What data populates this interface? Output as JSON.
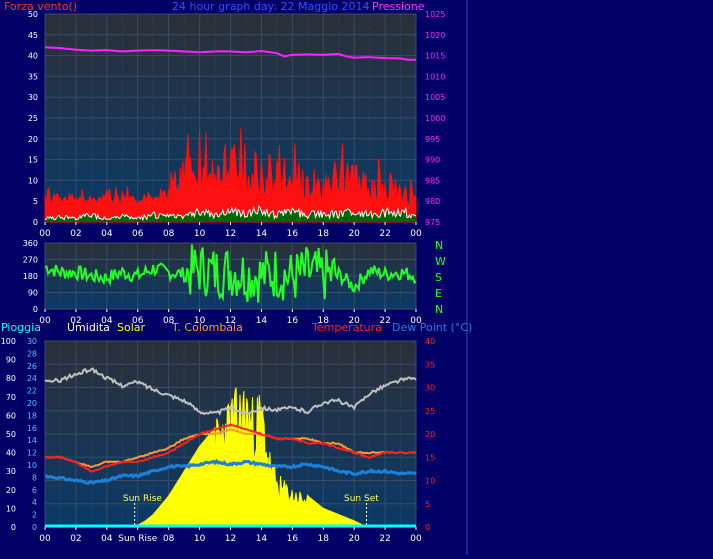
{
  "colors": {
    "page_bg": "#000066",
    "plot_bg_top": "#2b3038",
    "plot_bg_bottom": "#0a3a68",
    "grid": "#3a4c66",
    "axis_text": "#ffffff",
    "wind_gust": "#ff1010",
    "wind_avg": "#ffffff",
    "wind_fill": "#006600",
    "pressure": "#ff22ff",
    "direction": "#22ff22",
    "rain": "#00ffff",
    "humidity": "#c0c0c0",
    "solar": "#ffff00",
    "t_colombaia": "#ff9933",
    "temperature": "#ff2020",
    "dew_point": "#1e7fd8",
    "sunrise": "#ffff66"
  },
  "header": {
    "left": "Forza vento()",
    "center": "24 hour graph day:  22 Maggio 2014",
    "right": "Pressione"
  },
  "x_tick_labels": [
    "00",
    "02",
    "04",
    "06",
    "08",
    "10",
    "12",
    "14",
    "16",
    "18",
    "20",
    "22",
    "00"
  ],
  "x_tick_labels_bottom": [
    "00",
    "02",
    "04",
    "Sun Rise",
    "08",
    "10",
    "12",
    "14",
    "16",
    "18",
    "20",
    "22",
    "00"
  ],
  "compass_labels": [
    "N",
    "W",
    "S",
    "E",
    "N"
  ],
  "legend": {
    "rain": "Pioggia",
    "humidity": "Umidita",
    "solar": "Solar",
    "t_colombaia": "T. Colombaia",
    "temperature": "Temperatura",
    "dew_point": "Dew Point (°C)"
  },
  "annotations": {
    "sunrise": "Sun Rise",
    "sunset": "Sun Set"
  },
  "chart_data": [
    {
      "type": "line",
      "title": "24 hour graph day:  22 Maggio 2014",
      "x_unit": "hour",
      "xlim": [
        0,
        24
      ],
      "y_left_label": "Forza vento()",
      "y_left_lim": [
        0,
        50
      ],
      "y_left_ticks": [
        0,
        5,
        10,
        15,
        20,
        25,
        30,
        35,
        40,
        45,
        50
      ],
      "y_right_label": "Pressione",
      "y_right_lim": [
        975,
        1025
      ],
      "y_right_ticks": [
        975,
        980,
        985,
        990,
        995,
        1000,
        1005,
        1010,
        1015,
        1020,
        1025
      ],
      "grid": true,
      "series": [
        {
          "name": "Pressione",
          "axis": "right",
          "x": [
            0,
            1,
            2,
            3,
            4,
            5,
            6,
            7,
            8,
            9,
            10,
            11,
            12,
            13,
            14,
            15,
            15.5,
            16,
            17,
            18,
            19,
            19.5,
            20,
            21,
            22,
            23,
            23.5,
            24
          ],
          "values": [
            1017,
            1016.8,
            1016.4,
            1016.2,
            1016.3,
            1016,
            1016.2,
            1016.3,
            1016.2,
            1016,
            1015.8,
            1016,
            1016,
            1015.8,
            1016.1,
            1015.6,
            1014.8,
            1015.2,
            1015.3,
            1015.2,
            1015.4,
            1014.8,
            1014.5,
            1014.6,
            1014.4,
            1014.3,
            1014,
            1014
          ]
        },
        {
          "name": "gust",
          "axis": "left",
          "x": [
            0,
            1,
            2,
            3,
            4,
            5,
            6,
            7,
            8,
            9,
            10,
            11,
            12,
            13,
            14,
            15,
            16,
            17,
            18,
            19,
            20,
            21,
            22,
            23,
            24
          ],
          "values": [
            8,
            7,
            6,
            6,
            6,
            7,
            6,
            7,
            8,
            16,
            17,
            16,
            18,
            17,
            16,
            14,
            15,
            12,
            11,
            15,
            13,
            10,
            13,
            9,
            7
          ]
        },
        {
          "name": "average",
          "axis": "left",
          "x": [
            0,
            1,
            2,
            3,
            4,
            5,
            6,
            7,
            8,
            9,
            10,
            11,
            12,
            13,
            14,
            15,
            16,
            17,
            18,
            19,
            20,
            21,
            22,
            23,
            24
          ],
          "values": [
            1,
            1.5,
            1,
            2,
            1,
            1.5,
            1,
            2,
            1.5,
            2,
            3,
            2,
            3,
            2.5,
            3,
            2,
            3,
            2,
            2.5,
            2,
            3,
            2,
            2.5,
            3,
            2
          ]
        }
      ]
    },
    {
      "type": "line",
      "x_unit": "hour",
      "xlim": [
        0,
        24
      ],
      "ylabel": "",
      "ylim": [
        0,
        360
      ],
      "y_ticks": [
        0,
        90,
        180,
        270,
        360
      ],
      "grid": true,
      "series": [
        {
          "name": "direction",
          "x": [
            0,
            1,
            2,
            3,
            4,
            5,
            6,
            7,
            8,
            9,
            10,
            11,
            12,
            13,
            14,
            15,
            16,
            17,
            18,
            19,
            20,
            21,
            22,
            23,
            24
          ],
          "values": [
            230,
            200,
            200,
            180,
            170,
            200,
            180,
            220,
            200,
            190,
            220,
            200,
            210,
            190,
            180,
            200,
            170,
            200,
            180,
            190,
            120,
            210,
            190,
            200,
            180
          ]
        }
      ]
    },
    {
      "type": "line",
      "x_unit": "hour",
      "xlim": [
        0,
        24
      ],
      "y_rain_ticks": [
        0,
        10,
        20,
        30,
        40,
        50,
        60,
        70,
        80,
        90,
        100
      ],
      "y_solar_ticks": [
        0,
        2,
        4,
        6,
        8,
        10,
        12,
        14,
        16,
        18,
        20,
        22,
        24,
        26,
        28,
        30
      ],
      "y_temp_ticks": [
        0,
        5,
        10,
        15,
        20,
        25,
        30,
        35,
        40
      ],
      "y_temp_lim": [
        0,
        40
      ],
      "grid": true,
      "sunrise_hour": 5.8,
      "sunset_hour": 20.8,
      "series": [
        {
          "name": "Pioggia",
          "axis": "rain",
          "x": [
            0,
            24
          ],
          "values": [
            0,
            0
          ]
        },
        {
          "name": "Umidita",
          "axis": "rain",
          "x": [
            0,
            1,
            2,
            3,
            4,
            5,
            6,
            7,
            8,
            9,
            10,
            11,
            12,
            13,
            14,
            15,
            16,
            17,
            18,
            19,
            20,
            21,
            22,
            23,
            24
          ],
          "values": [
            78,
            79,
            82,
            85,
            80,
            76,
            78,
            74,
            71,
            68,
            62,
            61,
            64,
            61,
            64,
            63,
            64,
            62,
            67,
            68,
            64,
            72,
            76,
            79,
            80
          ]
        },
        {
          "name": "Solar",
          "axis": "solar",
          "x": [
            5.8,
            6.5,
            7,
            8,
            9,
            10,
            11,
            12,
            13,
            13.5,
            14,
            14.5,
            15,
            16,
            17,
            18,
            19,
            20,
            20.8
          ],
          "values": [
            0,
            1,
            2,
            5,
            9,
            13,
            16,
            20,
            22,
            19,
            21,
            12,
            8,
            6,
            5,
            3,
            2,
            1,
            0
          ]
        },
        {
          "name": "T. Colombaia",
          "axis": "temp",
          "x": [
            0,
            1,
            2,
            3,
            4,
            5,
            6,
            7,
            8,
            9,
            10,
            11,
            12,
            13,
            14,
            15,
            16,
            17,
            18,
            19,
            20,
            21,
            22,
            23,
            24
          ],
          "values": [
            15,
            15,
            14,
            13,
            14,
            14,
            15,
            16,
            17,
            19,
            20,
            20,
            21,
            20,
            20,
            19,
            19,
            19,
            18,
            18,
            16,
            16,
            16,
            16,
            16
          ]
        },
        {
          "name": "Temperatura",
          "axis": "temp",
          "x": [
            0,
            1,
            2,
            3,
            4,
            5,
            6,
            7,
            8,
            9,
            10,
            11,
            12,
            13,
            14,
            15,
            16,
            17,
            18,
            19,
            20,
            21,
            22,
            23,
            24
          ],
          "values": [
            15,
            15,
            14,
            12,
            13,
            14,
            14,
            15,
            16,
            18,
            20,
            21,
            22,
            21,
            20,
            19,
            19,
            18,
            18,
            17,
            16,
            15,
            16,
            16,
            16
          ]
        },
        {
          "name": "Dew Point",
          "axis": "temp",
          "x": [
            0,
            1,
            2,
            3,
            4,
            5,
            6,
            7,
            8,
            9,
            10,
            11,
            12,
            13,
            14,
            15,
            16,
            17,
            18,
            19,
            20,
            21,
            22,
            23,
            24
          ],
          "values": [
            11,
            10.5,
            10,
            9.5,
            10,
            11,
            11,
            12,
            13,
            13,
            13.5,
            14,
            13.5,
            14,
            13.5,
            13,
            13,
            13.5,
            13,
            12,
            11.5,
            12,
            12,
            11.5,
            11.5
          ]
        }
      ]
    }
  ]
}
